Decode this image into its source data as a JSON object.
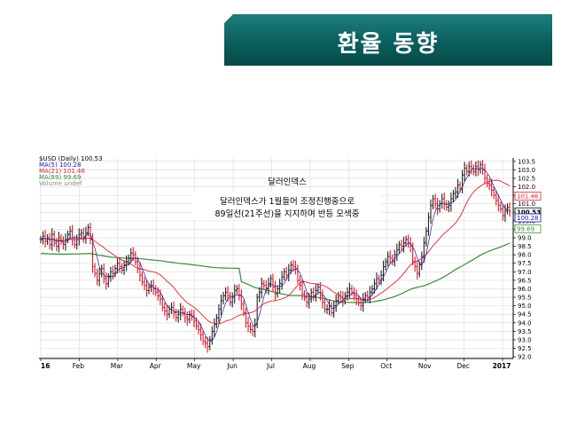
{
  "slide": {
    "title": "환율 동향"
  },
  "chart_data": {
    "type": "line",
    "instrument": "$USD (Daily) 100.53",
    "legend": [
      {
        "label": "MA(5) 100.28",
        "color": "#1a1aa8"
      },
      {
        "label": "MA(21) 101.46",
        "color": "#d8262f"
      },
      {
        "label": "MA(89) 99.69",
        "color": "#3c8b3c"
      },
      {
        "label": "Volume undef",
        "color": "#888888"
      }
    ],
    "annotations": {
      "title": "달러인덱스",
      "line1": "달러인덱스가 1월들어 조정진행중으로",
      "line2": "89일선(21주선)을 지지하며 반등 모색중"
    },
    "x_tick_labels": [
      "16",
      "Feb",
      "Mar",
      "Apr",
      "May",
      "Jun",
      "Jul",
      "Aug",
      "Sep",
      "Oct",
      "Nov",
      "Dec",
      "2017"
    ],
    "y_tick_labels": [
      "92.0",
      "92.5",
      "93.0",
      "93.5",
      "94.0",
      "94.5",
      "95.0",
      "95.5",
      "96.0",
      "96.5",
      "97.0",
      "97.5",
      "98.0",
      "98.5",
      "99.0",
      "99.5",
      "100.0",
      "100.5",
      "101.0",
      "101.5",
      "102.0",
      "102.5",
      "103.0",
      "103.5"
    ],
    "ylim": [
      91.9,
      103.7
    ],
    "last_value_labels": [
      {
        "text": "101.46",
        "value": 101.46,
        "color": "#d8262f"
      },
      {
        "text": "100.53",
        "value": 100.53,
        "color": "#000000"
      },
      {
        "text": "100.28",
        "value": 100.28,
        "color": "#1a1aa8"
      },
      {
        "text": "99.69",
        "value": 99.69,
        "color": "#3c8b3c"
      }
    ],
    "price_series": {
      "name": "$USD",
      "values": [
        98.9,
        99.1,
        98.8,
        99.0,
        98.6,
        99.2,
        98.7,
        98.5,
        99.0,
        98.8,
        98.6,
        98.9,
        99.2,
        99.4,
        98.9,
        98.6,
        98.9,
        99.2,
        99.3,
        99.0,
        99.3,
        99.6,
        98.9,
        97.3,
        96.9,
        96.5,
        96.9,
        97.2,
        96.6,
        96.3,
        96.7,
        97.0,
        96.9,
        97.2,
        97.5,
        97.3,
        97.1,
        97.4,
        97.6,
        97.8,
        98.1,
        98.0,
        97.6,
        97.2,
        96.8,
        96.4,
        96.2,
        95.9,
        96.1,
        96.2,
        96.0,
        95.8,
        95.6,
        95.4,
        94.9,
        94.7,
        94.5,
        94.8,
        94.9,
        94.6,
        94.3,
        94.5,
        94.8,
        94.6,
        94.3,
        94.2,
        94.5,
        94.4,
        94.1,
        93.8,
        93.6,
        93.3,
        92.9,
        92.8,
        92.6,
        93.0,
        93.5,
        93.9,
        94.3,
        94.8,
        95.3,
        95.6,
        95.8,
        95.6,
        95.2,
        95.5,
        95.9,
        96.0,
        95.6,
        95.1,
        94.6,
        94.0,
        93.8,
        93.6,
        93.5,
        93.9,
        95.5,
        95.8,
        96.3,
        96.2,
        96.0,
        96.3,
        96.6,
        96.1,
        95.7,
        96.0,
        96.3,
        96.7,
        97.0,
        96.8,
        97.1,
        97.4,
        97.3,
        97.2,
        96.5,
        96.2,
        95.7,
        95.5,
        95.2,
        95.4,
        95.8,
        95.6,
        95.9,
        96.1,
        95.6,
        95.2,
        94.8,
        94.8,
        95.0,
        94.6,
        95.0,
        95.3,
        95.6,
        95.5,
        95.3,
        95.6,
        95.8,
        96.0,
        95.8,
        95.6,
        95.4,
        95.2,
        95.0,
        95.4,
        95.6,
        95.5,
        95.8,
        96.0,
        96.3,
        96.6,
        96.5,
        96.8,
        97.3,
        97.6,
        97.9,
        97.8,
        97.6,
        98.0,
        98.3,
        98.6,
        98.5,
        98.7,
        98.9,
        98.7,
        98.5,
        97.6,
        97.3,
        96.9,
        97.4,
        97.9,
        98.7,
        99.4,
        100.2,
        100.9,
        101.3,
        101.0,
        100.7,
        101.0,
        101.3,
        101.0,
        100.8,
        100.9,
        101.3,
        101.6,
        101.7,
        102.1,
        101.9,
        102.7,
        103.1,
        102.9,
        103.2,
        103.1,
        102.9,
        103.2,
        103.0,
        103.3,
        103.0,
        102.5,
        102.2,
        102.1,
        101.8,
        101.5,
        101.2,
        100.9,
        100.7,
        100.3,
        100.6,
        100.8,
        100.53
      ]
    },
    "ma_series": [
      {
        "name": "MA(5)",
        "period": 5,
        "color": "#1a1aa8"
      },
      {
        "name": "MA(21)",
        "period": 21,
        "color": "#d8262f"
      },
      {
        "name": "MA(89)",
        "period": 89,
        "color": "#3c8b3c"
      }
    ],
    "grid": true
  }
}
